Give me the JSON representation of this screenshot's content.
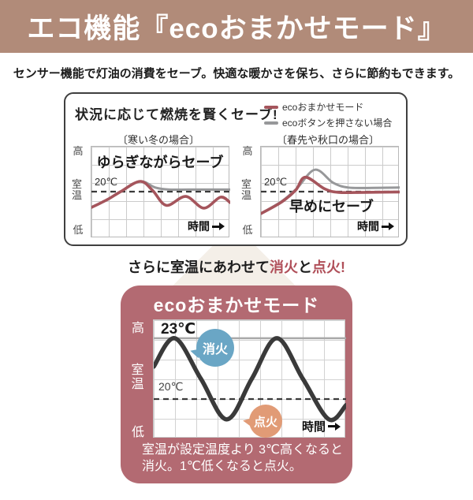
{
  "colors": {
    "header-bg": "#b18b79",
    "rose-bg": "#b36a72",
    "eco-red": "#a5555c",
    "no-eco-gray": "#97989a",
    "accent-red": "#b04f59",
    "wave-dark": "#3a3a3a",
    "badge-blue": "#6aa6c5",
    "badge-orange": "#e19b76",
    "diamond": "#f4efe8"
  },
  "header": {
    "title": "エコ機能『ecoおまかせモード』"
  },
  "intro": {
    "text": "センサー機能で灯油の消費をセーブ。快適な暖かさを保ち、さらに節約もできます。"
  },
  "save_box": {
    "title": "状況に応じて燃焼を賢くセーブ!",
    "legend": [
      {
        "label": "ecoおまかせモード"
      },
      {
        "label": "ecoボタンを押さない場合"
      }
    ],
    "charts": [
      {
        "case_label": "〔寒い冬の場合〕",
        "annotation": "ゆらぎながらセーブ",
        "temp_label": "20℃",
        "x_label": "時間",
        "y_high": "高",
        "y_mid": "室温",
        "y_low": "低"
      },
      {
        "case_label": "〔春先や秋口の場合〕",
        "annotation": "早めにセーブ",
        "temp_label": "20℃",
        "x_label": "時間",
        "y_high": "高",
        "y_mid": "室温",
        "y_low": "低"
      }
    ]
  },
  "save_line": {
    "prefix": "さらに室温にあわせて",
    "fire_off": "消火",
    "conj": "と",
    "fire_on": "点火",
    "exclaim": "!"
  },
  "eco_panel": {
    "title": "ecoおまかせモード",
    "chart": {
      "high_temp_label": "23℃",
      "set_temp_label": "20℃",
      "x_label": "時間",
      "y_high": "高",
      "y_mid": "室温",
      "y_low": "低",
      "off_badge": "消火",
      "on_badge": "点火"
    },
    "caption_line1": "室温が設定温度より 3℃高くなると",
    "caption_line2": "消火。1℃低くなると点火。"
  },
  "chart_data": [
    {
      "id": "winter",
      "type": "line",
      "title": "〔寒い冬の場合〕",
      "xlabel": "時間",
      "ylabel": "室温 (低〜高)",
      "reference_lines": [
        {
          "temp_c": 20,
          "style": "dashed",
          "label": "20℃"
        }
      ],
      "series": [
        {
          "name": "ecoボタンを押さない場合",
          "color": "no-eco-gray",
          "points": [
            [
              0,
              17.7
            ],
            [
              1.2,
              18.9
            ],
            [
              2.1,
              20.0
            ],
            [
              3.5,
              21.5
            ],
            [
              4.6,
              20.6
            ],
            [
              5.6,
              20.3
            ],
            [
              7.0,
              20.3
            ],
            [
              10,
              20.3
            ]
          ]
        },
        {
          "name": "ecoおまかせモード",
          "color": "eco-red",
          "points": [
            [
              0,
              17.7
            ],
            [
              1.2,
              18.9
            ],
            [
              2.1,
              20.0
            ],
            [
              3.5,
              21.5
            ],
            [
              4.4,
              20.2
            ],
            [
              5.4,
              18.0
            ],
            [
              6.8,
              19.3
            ],
            [
              8.1,
              17.6
            ],
            [
              9.3,
              19.2
            ],
            [
              10,
              18.4
            ]
          ]
        }
      ]
    },
    {
      "id": "spring",
      "type": "line",
      "title": "〔春先や秋口の場合〕",
      "xlabel": "時間",
      "ylabel": "室温 (低〜高)",
      "reference_lines": [
        {
          "temp_c": 20,
          "style": "dashed",
          "label": "20℃"
        }
      ],
      "series": [
        {
          "name": "ecoボタンを押さない場合",
          "color": "no-eco-gray",
          "points": [
            [
              0,
              16.8
            ],
            [
              1.5,
              18.6
            ],
            [
              2.6,
              20.5
            ],
            [
              3.9,
              23.2
            ],
            [
              5.2,
              21.3
            ],
            [
              6.3,
              20.6
            ],
            [
              8.0,
              20.55
            ],
            [
              10,
              20.6
            ]
          ]
        },
        {
          "name": "ecoおまかせモード",
          "color": "eco-red",
          "points": [
            [
              0,
              16.8
            ],
            [
              1.5,
              18.5
            ],
            [
              2.5,
              20.2
            ],
            [
              3.2,
              22.1
            ],
            [
              4.6,
              20.4
            ],
            [
              5.6,
              19.9
            ],
            [
              7.5,
              19.9
            ],
            [
              10,
              19.95
            ]
          ]
        }
      ]
    },
    {
      "id": "main",
      "type": "line",
      "title": "ecoおまかせモード",
      "xlabel": "時間",
      "ylabel": "室温 (低〜高)",
      "reference_lines": [
        {
          "temp_c": 23,
          "style": "solid",
          "label": "23℃"
        },
        {
          "temp_c": 20,
          "style": "dashed",
          "label": "20℃"
        }
      ],
      "series": [
        {
          "name": "室温",
          "color": "wave-dark",
          "points": [
            [
              0,
              21.6
            ],
            [
              1.1,
              23.0
            ],
            [
              2.45,
              21.0
            ],
            [
              3.8,
              19.0
            ],
            [
              5.1,
              21.0
            ],
            [
              6.4,
              23.0
            ],
            [
              7.75,
              21.0
            ],
            [
              9.1,
              19.0
            ],
            [
              10,
              19.7
            ]
          ]
        }
      ]
    }
  ]
}
